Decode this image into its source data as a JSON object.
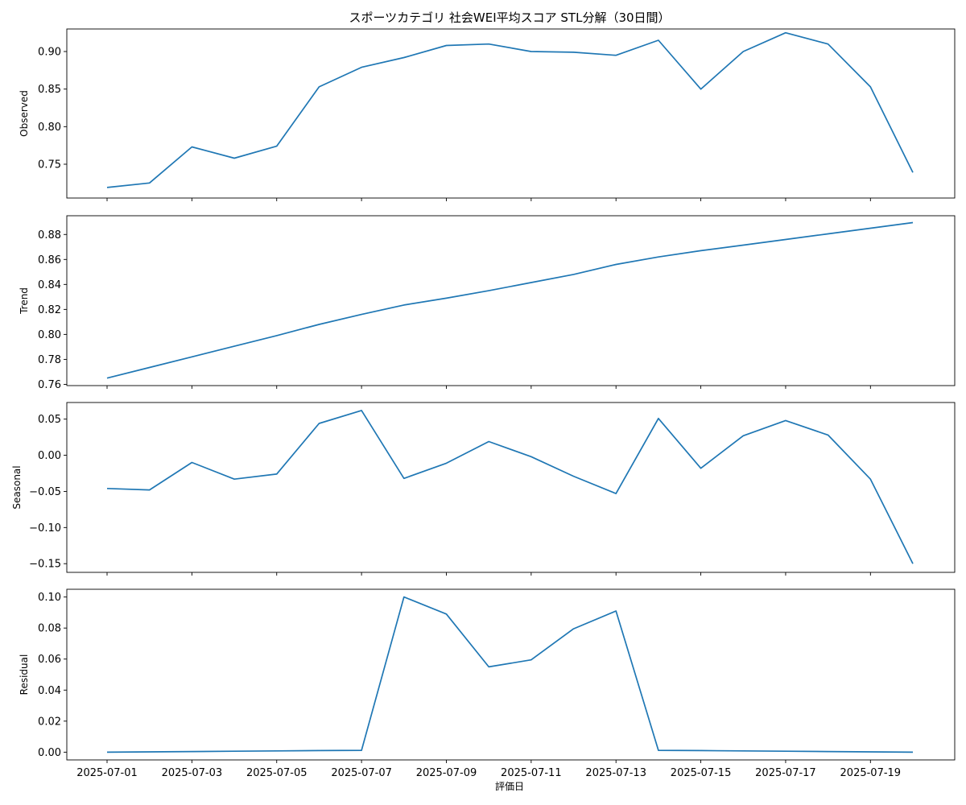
{
  "chart_data": {
    "type": "line",
    "title": "スポーツカテゴリ 社会WEI平均スコア STL分解（30日間）",
    "xlabel": "評価日",
    "x_tick_labels": [
      "2025-07-01",
      "2025-07-03",
      "2025-07-05",
      "2025-07-07",
      "2025-07-09",
      "2025-07-11",
      "2025-07-13",
      "2025-07-15",
      "2025-07-17",
      "2025-07-19"
    ],
    "x": [
      "2025-07-01",
      "2025-07-02",
      "2025-07-03",
      "2025-07-04",
      "2025-07-05",
      "2025-07-06",
      "2025-07-07",
      "2025-07-08",
      "2025-07-09",
      "2025-07-10",
      "2025-07-11",
      "2025-07-12",
      "2025-07-13",
      "2025-07-14",
      "2025-07-15",
      "2025-07-16",
      "2025-07-17",
      "2025-07-18",
      "2025-07-19",
      "2025-07-20"
    ],
    "line_color": "#1f77b4",
    "panels": [
      {
        "ylabel": "Observed",
        "ylim": [
          0.705,
          0.93
        ],
        "y_ticks": [
          0.75,
          0.8,
          0.85,
          0.9
        ],
        "y_tick_labels": [
          "0.75",
          "0.80",
          "0.85",
          "0.90"
        ],
        "values": [
          0.719,
          0.725,
          0.773,
          0.758,
          0.774,
          0.853,
          0.879,
          0.892,
          0.908,
          0.91,
          0.9,
          0.899,
          0.895,
          0.915,
          0.85,
          0.9,
          0.925,
          0.91,
          0.853,
          0.739
        ]
      },
      {
        "ylabel": "Trend",
        "ylim": [
          0.759,
          0.895
        ],
        "y_ticks": [
          0.76,
          0.78,
          0.8,
          0.82,
          0.84,
          0.86,
          0.88
        ],
        "y_tick_labels": [
          "0.76",
          "0.78",
          "0.80",
          "0.82",
          "0.84",
          "0.86",
          "0.88"
        ],
        "values": [
          0.765,
          0.7735,
          0.782,
          0.7905,
          0.799,
          0.808,
          0.816,
          0.8235,
          0.829,
          0.835,
          0.8415,
          0.848,
          0.856,
          0.862,
          0.867,
          0.8715,
          0.876,
          0.8805,
          0.885,
          0.8895
        ]
      },
      {
        "ylabel": "Seasonal",
        "ylim": [
          -0.162,
          0.073
        ],
        "y_ticks": [
          -0.15,
          -0.1,
          -0.05,
          0.0,
          0.05
        ],
        "y_tick_labels": [
          "−0.15",
          "−0.10",
          "−0.05",
          "0.00",
          "0.05"
        ],
        "values": [
          -0.046,
          -0.048,
          -0.01,
          -0.033,
          -0.026,
          0.044,
          0.062,
          -0.032,
          -0.011,
          0.019,
          -0.002,
          -0.029,
          -0.053,
          0.051,
          -0.018,
          0.027,
          0.048,
          0.028,
          -0.033,
          -0.15
        ]
      },
      {
        "ylabel": "Residual",
        "ylim": [
          -0.005,
          0.105
        ],
        "y_ticks": [
          0.0,
          0.02,
          0.04,
          0.06,
          0.08,
          0.1
        ],
        "y_tick_labels": [
          "0.00",
          "0.02",
          "0.04",
          "0.06",
          "0.08",
          "0.10"
        ],
        "values": [
          0.0,
          0.0002,
          0.0004,
          0.0006,
          0.0008,
          0.001,
          0.0012,
          0.1,
          0.089,
          0.055,
          0.0595,
          0.0795,
          0.091,
          0.0012,
          0.001,
          0.0008,
          0.0006,
          0.0004,
          0.0002,
          0.0
        ]
      }
    ]
  }
}
